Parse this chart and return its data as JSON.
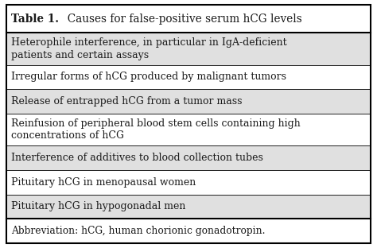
{
  "title_bold": "Table 1.",
  "title_rest": "  Causes for false-positive serum hCG levels",
  "rows": [
    {
      "text": "Heterophile interference, in particular in IgA-deficient\npatients and certain assays",
      "shaded": true,
      "two_line": true
    },
    {
      "text": "Irregular forms of hCG produced by malignant tumors",
      "shaded": false,
      "two_line": false
    },
    {
      "text": "Release of entrapped hCG from a tumor mass",
      "shaded": true,
      "two_line": false
    },
    {
      "text": "Reinfusion of peripheral blood stem cells containing high\nconcentrations of hCG",
      "shaded": false,
      "two_line": true
    },
    {
      "text": "Interference of additives to blood collection tubes",
      "shaded": true,
      "two_line": false
    },
    {
      "text": "Pituitary hCG in menopausal women",
      "shaded": false,
      "two_line": false
    },
    {
      "text": "Pituitary hCG in hypogonadal men",
      "shaded": true,
      "two_line": false
    }
  ],
  "abbreviation": "Abbreviation: hCG, human chorionic gonadotropin.",
  "bg_color": "#ffffff",
  "shaded_color": "#e0e0e0",
  "border_color": "#000000",
  "text_color": "#1a1a1a",
  "title_fontsize": 9.8,
  "row_fontsize": 9.0,
  "abbrev_fontsize": 8.8,
  "fig_width": 4.74,
  "fig_height": 3.12,
  "dpi": 100
}
